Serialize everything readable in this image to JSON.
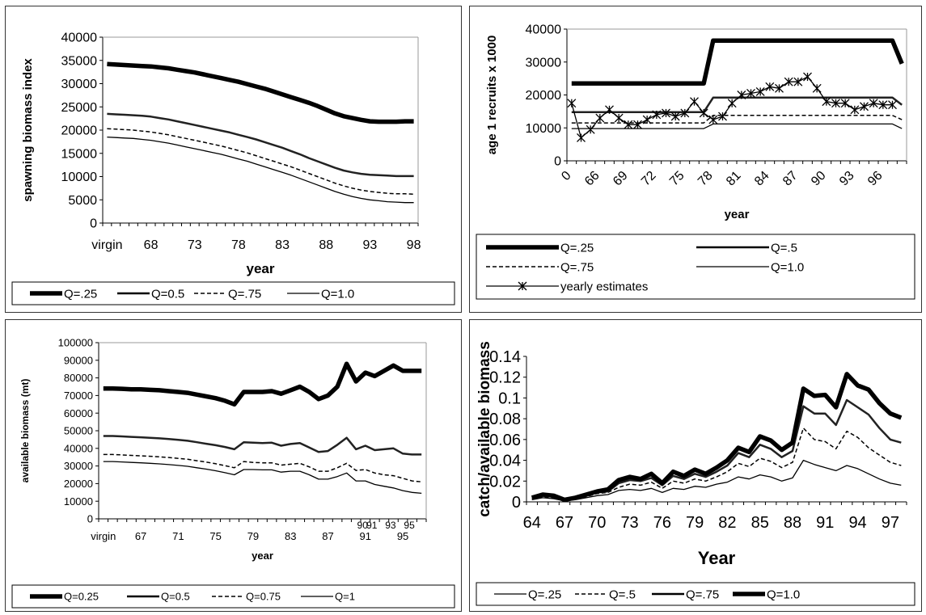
{
  "chart_data": [
    {
      "type": "line",
      "title": "",
      "xlabel": "year",
      "ylabel": "spawning biomass index",
      "ylim": [
        0,
        40000
      ],
      "yticks": [
        "0",
        "5000",
        "10000",
        "15000",
        "20000",
        "25000",
        "30000",
        "35000",
        "40000"
      ],
      "categories": [
        "virgin",
        "64",
        "65",
        "66",
        "67",
        "68",
        "69",
        "70",
        "71",
        "72",
        "73",
        "74",
        "75",
        "76",
        "77",
        "78",
        "79",
        "80",
        "81",
        "82",
        "83",
        "84",
        "85",
        "86",
        "87",
        "88",
        "89",
        "90",
        "91",
        "92",
        "93",
        "94",
        "95",
        "96",
        "97",
        "98"
      ],
      "xticklabels": [
        "virgin",
        "68",
        "73",
        "78",
        "83",
        "88",
        "93",
        "98"
      ],
      "series": [
        {
          "name": "Q=.25",
          "style": "heavy",
          "values": [
            34200,
            34100,
            34000,
            33900,
            33800,
            33700,
            33500,
            33300,
            33000,
            32700,
            32400,
            32000,
            31600,
            31200,
            30800,
            30400,
            29900,
            29400,
            28900,
            28300,
            27700,
            27100,
            26500,
            25900,
            25200,
            24400,
            23600,
            23000,
            22600,
            22200,
            21900,
            21800,
            21800,
            21800,
            21900,
            21900
          ]
        },
        {
          "name": "Q=0.5",
          "style": "medium",
          "values": [
            23500,
            23400,
            23300,
            23200,
            23100,
            22900,
            22600,
            22300,
            21900,
            21500,
            21100,
            20700,
            20300,
            19900,
            19500,
            19000,
            18500,
            18000,
            17400,
            16800,
            16200,
            15500,
            14800,
            14000,
            13300,
            12600,
            11900,
            11300,
            10900,
            10600,
            10400,
            10300,
            10200,
            10100,
            10100,
            10100
          ]
        },
        {
          "name": "Q=.75",
          "style": "dashed",
          "values": [
            20300,
            20200,
            20100,
            20000,
            19800,
            19600,
            19300,
            19000,
            18600,
            18200,
            17800,
            17400,
            17000,
            16600,
            16100,
            15600,
            15100,
            14500,
            13900,
            13300,
            12700,
            12100,
            11400,
            10700,
            10000,
            9300,
            8600,
            8000,
            7500,
            7100,
            6800,
            6600,
            6400,
            6300,
            6300,
            6200
          ]
        },
        {
          "name": "Q=1.0",
          "style": "thin",
          "values": [
            18500,
            18400,
            18300,
            18200,
            18000,
            17800,
            17500,
            17200,
            16800,
            16400,
            16000,
            15600,
            15200,
            14800,
            14300,
            13800,
            13300,
            12700,
            12100,
            11500,
            10900,
            10300,
            9600,
            8900,
            8200,
            7500,
            6800,
            6200,
            5700,
            5300,
            5000,
            4800,
            4600,
            4500,
            4400,
            4400
          ]
        }
      ],
      "legend": {
        "placement": "bottom",
        "labels": [
          "Q=.25",
          "Q=0.5",
          "Q=.75",
          "Q=1.0"
        ]
      }
    },
    {
      "type": "line",
      "title": "",
      "xlabel": "year",
      "ylabel": "age 1 recruits x 1000",
      "ylim": [
        0,
        40000
      ],
      "yticks": [
        "0",
        "10000",
        "20000",
        "30000",
        "40000"
      ],
      "categories": [
        "0",
        "64",
        "65",
        "66",
        "67",
        "68",
        "69",
        "70",
        "71",
        "72",
        "73",
        "74",
        "75",
        "76",
        "77",
        "78",
        "79",
        "80",
        "81",
        "82",
        "83",
        "84",
        "85",
        "86",
        "87",
        "88",
        "89",
        "90",
        "91",
        "92",
        "93",
        "94",
        "95",
        "96",
        "97",
        "98"
      ],
      "xticklabels": [
        "0",
        "66",
        "69",
        "72",
        "75",
        "78",
        "81",
        "84",
        "87",
        "90",
        "93",
        "96"
      ],
      "series": [
        {
          "name": "Q=.25",
          "style": "heavy",
          "values": [
            23500,
            23500,
            23500,
            23500,
            23500,
            23500,
            23500,
            23500,
            23500,
            23500,
            23500,
            23500,
            23500,
            23500,
            23500,
            36500,
            36500,
            36500,
            36500,
            36500,
            36500,
            36500,
            36500,
            36500,
            36500,
            36500,
            36500,
            36500,
            36500,
            36500,
            36500,
            36500,
            36500,
            36500,
            36500,
            29500
          ]
        },
        {
          "name": "Q=.5",
          "style": "medium",
          "values": [
            14800,
            14800,
            14800,
            14800,
            14800,
            14800,
            14800,
            14800,
            14800,
            14800,
            14800,
            14800,
            14800,
            14800,
            14800,
            19200,
            19200,
            19200,
            19200,
            19200,
            19200,
            19200,
            19200,
            19200,
            19200,
            19200,
            19200,
            19200,
            19200,
            19200,
            19200,
            19200,
            19200,
            19200,
            19200,
            17000
          ]
        },
        {
          "name": "Q=.75",
          "style": "dashed",
          "values": [
            11500,
            11500,
            11500,
            11500,
            11500,
            11500,
            11500,
            11500,
            11500,
            11500,
            11500,
            11500,
            11500,
            11500,
            11500,
            13800,
            13800,
            13800,
            13800,
            13800,
            13800,
            13800,
            13800,
            13800,
            13800,
            13800,
            13800,
            13800,
            13800,
            13800,
            13800,
            13800,
            13800,
            13800,
            13800,
            12500
          ]
        },
        {
          "name": "Q=1.0",
          "style": "thin",
          "values": [
            9800,
            9800,
            9800,
            9800,
            9800,
            9800,
            9800,
            9800,
            9800,
            9800,
            9800,
            9800,
            9800,
            9800,
            9800,
            11200,
            11200,
            11200,
            11200,
            11200,
            11200,
            11200,
            11200,
            11200,
            11200,
            11200,
            11200,
            11200,
            11200,
            11200,
            11200,
            11200,
            11200,
            11200,
            11200,
            9800
          ]
        },
        {
          "name": "yearly estimates",
          "style": "star",
          "values": [
            17500,
            7000,
            9500,
            13000,
            15500,
            13000,
            11000,
            11000,
            12500,
            14000,
            14500,
            13500,
            14500,
            18000,
            14500,
            12500,
            13500,
            17500,
            20000,
            20500,
            21000,
            22500,
            22000,
            24000,
            24000,
            25500,
            22000,
            18000,
            17500,
            17500,
            15500,
            16500,
            17500,
            17000,
            17000,
            null
          ]
        }
      ],
      "legend": {
        "placement": "bottom",
        "labels": [
          "Q=.25",
          "Q=.5",
          "Q=.75",
          "Q=1.0",
          "yearly estimates"
        ]
      }
    },
    {
      "type": "line",
      "title": "",
      "xlabel": "year",
      "ylabel": "available biomass (mt)",
      "ylim": [
        0,
        100000
      ],
      "yticks": [
        "0",
        "10000",
        "20000",
        "30000",
        "40000",
        "50000",
        "60000",
        "70000",
        "80000",
        "90000",
        "100000"
      ],
      "categories": [
        "virgin",
        "64",
        "65",
        "66",
        "67",
        "68",
        "69",
        "70",
        "71",
        "72",
        "73",
        "74",
        "75",
        "76",
        "77",
        "78",
        "79",
        "80",
        "81",
        "82",
        "83",
        "84",
        "85",
        "86",
        "87",
        "88",
        "89",
        "90",
        "91",
        "92",
        "93",
        "94",
        "95",
        "96",
        "97"
      ],
      "xticklabels": [
        "virgin",
        "67",
        "71",
        "75",
        "79",
        "83",
        "87",
        "91",
        "95"
      ],
      "secondary_labels": [
        "90",
        "91",
        "93",
        "95"
      ],
      "series": [
        {
          "name": "Q=0.25",
          "style": "heavy",
          "values": [
            74000,
            74000,
            73800,
            73500,
            73500,
            73200,
            73000,
            72500,
            72000,
            71500,
            70500,
            69500,
            68500,
            67000,
            65000,
            72000,
            72000,
            72000,
            72500,
            71000,
            73000,
            75000,
            72000,
            68000,
            70000,
            75000,
            88000,
            78000,
            83000,
            81000,
            84000,
            87000,
            84000,
            84000,
            84000
          ]
        },
        {
          "name": "Q=0.5",
          "style": "medium",
          "values": [
            47000,
            47000,
            46800,
            46500,
            46300,
            46000,
            45700,
            45300,
            44800,
            44300,
            43500,
            42600,
            41800,
            40800,
            39500,
            43500,
            43200,
            43000,
            43200,
            41500,
            42500,
            43000,
            40500,
            38000,
            38500,
            42000,
            46000,
            39500,
            41500,
            39000,
            39500,
            40000,
            37000,
            36500,
            36500
          ]
        },
        {
          "name": "Q=0.75",
          "style": "dashed",
          "values": [
            36500,
            36500,
            36300,
            36000,
            35800,
            35500,
            35200,
            34800,
            34300,
            33800,
            33000,
            32200,
            31300,
            30200,
            29000,
            32500,
            32000,
            31800,
            31800,
            30500,
            31000,
            31500,
            29500,
            27000,
            27000,
            29000,
            31500,
            27500,
            28000,
            26000,
            25000,
            24500,
            23000,
            21500,
            21000
          ]
        },
        {
          "name": "Q=1",
          "style": "thin",
          "values": [
            32500,
            32500,
            32300,
            32000,
            31800,
            31500,
            31200,
            30800,
            30300,
            29800,
            29000,
            28200,
            27300,
            26200,
            25000,
            28000,
            28000,
            27800,
            27800,
            26500,
            27000,
            27000,
            25000,
            22500,
            22500,
            24000,
            26000,
            21500,
            21500,
            19500,
            18500,
            17500,
            16000,
            15000,
            14500
          ]
        }
      ],
      "legend": {
        "placement": "bottom",
        "labels": [
          "Q=0.25",
          "Q=0.5",
          "Q=0.75",
          "Q=1"
        ]
      }
    },
    {
      "type": "line",
      "title": "",
      "xlabel": "Year",
      "ylabel": "catch/available biomass",
      "ylim": [
        0,
        0.14
      ],
      "yticks": [
        "0",
        "0.02",
        "0.04",
        "0.06",
        "0.08",
        "0.1",
        "0.12",
        "0.14"
      ],
      "categories": [
        "64",
        "65",
        "66",
        "67",
        "68",
        "69",
        "70",
        "71",
        "72",
        "73",
        "74",
        "75",
        "76",
        "77",
        "78",
        "79",
        "80",
        "81",
        "82",
        "83",
        "84",
        "85",
        "86",
        "87",
        "88",
        "89",
        "90",
        "91",
        "92",
        "93",
        "94",
        "95",
        "96",
        "97",
        "98"
      ],
      "xticklabels": [
        "64",
        "67",
        "70",
        "73",
        "76",
        "79",
        "82",
        "85",
        "88",
        "91",
        "94",
        "97"
      ],
      "series": [
        {
          "name": "Q=.25",
          "style": "thin",
          "values": [
            0.002,
            0.004,
            0.003,
            0.001,
            0.002,
            0.004,
            0.006,
            0.007,
            0.011,
            0.012,
            0.011,
            0.013,
            0.009,
            0.013,
            0.012,
            0.015,
            0.014,
            0.017,
            0.019,
            0.024,
            0.022,
            0.026,
            0.024,
            0.02,
            0.023,
            0.04,
            0.036,
            0.033,
            0.03,
            0.035,
            0.032,
            0.027,
            0.022,
            0.018,
            0.016
          ]
        },
        {
          "name": "Q=.5",
          "style": "dashed",
          "values": [
            0.003,
            0.005,
            0.004,
            0.001,
            0.003,
            0.005,
            0.008,
            0.009,
            0.014,
            0.017,
            0.016,
            0.019,
            0.013,
            0.02,
            0.018,
            0.022,
            0.02,
            0.024,
            0.029,
            0.037,
            0.034,
            0.042,
            0.039,
            0.033,
            0.038,
            0.071,
            0.06,
            0.058,
            0.051,
            0.068,
            0.062,
            0.052,
            0.045,
            0.038,
            0.035
          ]
        },
        {
          "name": "Q=.75",
          "style": "medium",
          "values": [
            0.004,
            0.006,
            0.005,
            0.002,
            0.003,
            0.006,
            0.009,
            0.01,
            0.018,
            0.021,
            0.02,
            0.023,
            0.016,
            0.025,
            0.022,
            0.027,
            0.024,
            0.029,
            0.035,
            0.047,
            0.043,
            0.055,
            0.051,
            0.043,
            0.049,
            0.092,
            0.085,
            0.085,
            0.074,
            0.098,
            0.091,
            0.084,
            0.071,
            0.06,
            0.057
          ]
        },
        {
          "name": "Q=1.0",
          "style": "heavy",
          "values": [
            0.004,
            0.007,
            0.006,
            0.002,
            0.004,
            0.007,
            0.01,
            0.012,
            0.021,
            0.024,
            0.022,
            0.027,
            0.018,
            0.029,
            0.025,
            0.031,
            0.027,
            0.033,
            0.04,
            0.052,
            0.048,
            0.063,
            0.059,
            0.05,
            0.057,
            0.109,
            0.102,
            0.103,
            0.091,
            0.123,
            0.112,
            0.108,
            0.095,
            0.085,
            0.081
          ]
        }
      ],
      "legend": {
        "placement": "bottom",
        "labels": [
          "Q=.25",
          "Q=.5",
          "Q=.75",
          "Q=1.0"
        ]
      }
    }
  ]
}
